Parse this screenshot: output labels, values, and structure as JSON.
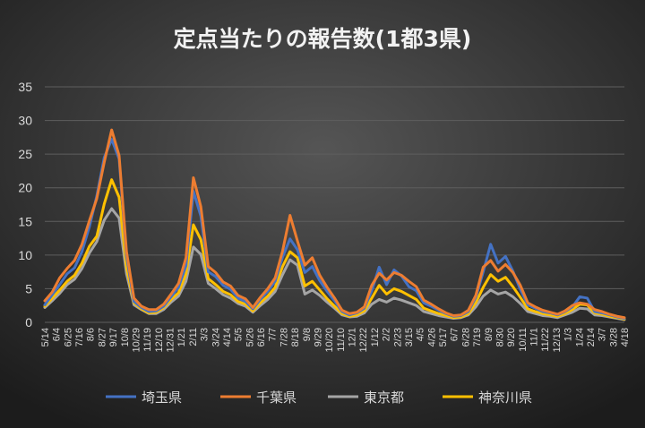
{
  "chart_data": {
    "type": "line",
    "title": "定点当たりの報告数(1都3県)",
    "xlabel": "",
    "ylabel": "",
    "ylim": [
      0,
      35
    ],
    "yticks": [
      0,
      5,
      10,
      15,
      20,
      25,
      30,
      35
    ],
    "grid": true,
    "legend_position": "bottom",
    "colors": {
      "background_top": "#525252",
      "background_bottom": "#1e1e1e",
      "gridline": "#5e5e5e",
      "text": "#d9d9d9"
    },
    "x_tick_labels": [
      "5/14",
      "6/4",
      "6/25",
      "7/16",
      "8/6",
      "8/27",
      "9/17",
      "10/8",
      "10/29",
      "11/19",
      "12/10",
      "12/31",
      "1/21",
      "2/11",
      "3/3",
      "3/24",
      "4/14",
      "5/5",
      "5/26",
      "6/16",
      "7/7",
      "7/28",
      "8/18",
      "9/8",
      "9/29",
      "10/20",
      "11/10",
      "12/1",
      "12/22",
      "1/12",
      "2/2",
      "2/23",
      "3/15",
      "4/5",
      "4/26",
      "5/17",
      "6/7",
      "6/28",
      "7/19",
      "8/9",
      "8/30",
      "9/20",
      "10/11",
      "11/1",
      "11/22",
      "12/13",
      "1/3",
      "1/24",
      "2/14",
      "3/7",
      "3/28",
      "4/18"
    ],
    "series": [
      {
        "name": "埼玉県",
        "color": "#4472c4",
        "values": [
          2.6,
          4.1,
          5.6,
          7.2,
          8.1,
          10.5,
          14.2,
          18.8,
          24.5,
          27.2,
          24.3,
          9.8,
          3.1,
          2.2,
          1.6,
          1.7,
          2.4,
          3.8,
          5.2,
          8.4,
          19.5,
          15.8,
          7.5,
          6.8,
          5.5,
          4.9,
          3.6,
          3.1,
          2.0,
          3.4,
          4.6,
          6.1,
          9.7,
          12.4,
          10.8,
          7.4,
          8.3,
          6.2,
          4.6,
          3.2,
          1.6,
          1.1,
          1.4,
          2.1,
          4.7,
          8.2,
          5.6,
          7.8,
          6.9,
          5.3,
          4.7,
          2.9,
          2.4,
          1.8,
          1.3,
          0.9,
          1.0,
          1.6,
          3.7,
          7.5,
          11.6,
          8.8,
          9.8,
          7.6,
          4.9,
          2.6,
          2.1,
          1.6,
          1.4,
          1.1,
          1.6,
          2.3,
          3.8,
          3.6,
          1.6,
          1.4,
          1.1,
          0.8,
          0.6
        ]
      },
      {
        "name": "千葉県",
        "color": "#ed7d31",
        "values": [
          3.2,
          4.5,
          6.6,
          8.0,
          9.2,
          11.6,
          15.1,
          18.4,
          23.8,
          28.6,
          24.8,
          10.5,
          3.6,
          2.4,
          1.9,
          1.9,
          2.7,
          4.2,
          5.8,
          9.6,
          21.5,
          17.2,
          8.3,
          7.4,
          6.0,
          5.4,
          4.0,
          3.5,
          2.2,
          3.7,
          5.0,
          6.6,
          10.6,
          15.9,
          12.1,
          8.5,
          9.6,
          7.0,
          5.2,
          3.6,
          1.8,
          1.3,
          1.5,
          2.3,
          5.5,
          7.3,
          6.3,
          7.4,
          7.0,
          6.1,
          5.3,
          3.3,
          2.7,
          2.0,
          1.4,
          1.0,
          1.1,
          1.8,
          4.0,
          8.2,
          9.2,
          7.6,
          8.6,
          7.4,
          5.5,
          2.9,
          2.3,
          1.8,
          1.5,
          1.2,
          1.7,
          2.5,
          2.9,
          2.7,
          1.9,
          1.6,
          1.2,
          0.9,
          0.7
        ]
      },
      {
        "name": "東京都",
        "color": "#a5a5a5",
        "values": [
          2.2,
          3.2,
          4.3,
          5.6,
          6.4,
          8.0,
          10.3,
          12.0,
          15.2,
          16.9,
          15.5,
          7.2,
          2.6,
          1.9,
          1.3,
          1.3,
          1.9,
          3.0,
          3.9,
          6.1,
          11.2,
          10.1,
          5.8,
          5.0,
          4.1,
          3.6,
          2.8,
          2.4,
          1.5,
          2.5,
          3.4,
          4.6,
          7.1,
          9.3,
          8.5,
          4.2,
          4.8,
          4.0,
          3.0,
          2.1,
          1.1,
          0.8,
          0.9,
          1.4,
          2.7,
          3.4,
          3.0,
          3.6,
          3.3,
          2.9,
          2.5,
          1.6,
          1.3,
          1.0,
          0.8,
          0.6,
          0.7,
          1.1,
          2.3,
          3.9,
          4.8,
          4.2,
          4.5,
          3.8,
          2.8,
          1.6,
          1.3,
          1.0,
          0.9,
          0.7,
          1.1,
          1.5,
          2.1,
          2.0,
          1.1,
          1.0,
          0.8,
          0.6,
          0.4
        ]
      },
      {
        "name": "神奈川県",
        "color": "#ffc000",
        "values": [
          2.4,
          3.6,
          4.8,
          6.1,
          7.0,
          8.8,
          11.3,
          12.8,
          17.6,
          21.2,
          18.6,
          8.2,
          2.9,
          2.0,
          1.4,
          1.5,
          2.2,
          3.4,
          4.4,
          7.2,
          14.5,
          12.3,
          6.5,
          5.6,
          4.6,
          4.1,
          3.1,
          2.7,
          1.7,
          2.9,
          3.9,
          5.2,
          8.3,
          10.5,
          9.6,
          5.4,
          6.1,
          4.8,
          3.5,
          2.4,
          1.3,
          0.9,
          1.1,
          1.7,
          3.6,
          5.5,
          4.2,
          5.0,
          4.6,
          4.0,
          3.4,
          2.1,
          1.7,
          1.3,
          1.0,
          0.7,
          0.8,
          1.3,
          2.9,
          5.2,
          7.1,
          6.1,
          6.7,
          5.3,
          3.7,
          2.0,
          1.6,
          1.3,
          1.1,
          0.9,
          1.3,
          1.9,
          2.7,
          2.6,
          1.4,
          1.2,
          0.9,
          0.7,
          0.5
        ]
      }
    ]
  }
}
